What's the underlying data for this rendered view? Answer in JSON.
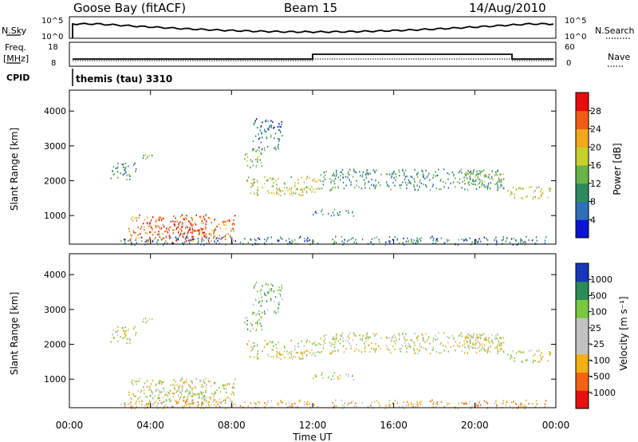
{
  "header": {
    "station": "Goose Bay (fitACF)",
    "beam": "Beam 15",
    "date": "14/Aug/2010"
  },
  "nsky_panel": {
    "left_label": "N.Sky",
    "right_label": "N.Search",
    "ticks_left": [
      "10^5",
      "10^0"
    ],
    "ticks_right": [
      "10^5",
      "10^0"
    ]
  },
  "freq_panel": {
    "left_label": "Freq.",
    "left_unit": "[MHz]",
    "right_label": "Nave",
    "ticks_left": [
      "18",
      "8"
    ],
    "ticks_right": [
      "60",
      "0"
    ]
  },
  "cpid": {
    "label": "CPID",
    "value": "themis (tau) 3310"
  },
  "x_axis": {
    "label": "Time UT",
    "ticks": [
      "00:00",
      "04:00",
      "08:00",
      "12:00",
      "16:00",
      "20:00",
      "00:00"
    ]
  },
  "colors": {
    "power_scale": [
      "#0a14d2",
      "#2e6fb7",
      "#2d8a5e",
      "#6ab24a",
      "#c9cf2c",
      "#f2a81c",
      "#f25c12",
      "#e80c0c"
    ],
    "velocity_scale": [
      "#e81010",
      "#f26414",
      "#f2b014",
      "#c2c2c2",
      "#c2c2c2",
      "#78c840",
      "#2c8c58",
      "#1836b8"
    ]
  },
  "chart_data": {
    "type": "heatmap",
    "x_unit": "hours UT",
    "y_unit": "km",
    "xlim": [
      0,
      24
    ],
    "ylim": [
      180,
      4600
    ],
    "power_panel": {
      "ylabel": "Slant Range [km]",
      "yticks": [
        1000,
        2000,
        3000,
        4000
      ],
      "colorbar_label": "Power [dB]",
      "colorbar_ticks": [
        "28",
        "24",
        "20",
        "16",
        "12",
        "8",
        "4"
      ]
    },
    "velocity_panel": {
      "ylabel": "Slant Range [km]",
      "yticks": [
        1000,
        2000,
        3000,
        4000
      ],
      "colorbar_label": "Velocity [m s⁻¹]",
      "colorbar_ticks": [
        "1000",
        "500",
        "100",
        "25",
        "-25",
        "-100",
        "-500",
        "-1000"
      ]
    },
    "scatter_regions": [
      {
        "t0": 2.9,
        "t1": 8.2,
        "r0": 280,
        "r1": 1050,
        "power": 25,
        "vel": 0
      },
      {
        "t0": 4.5,
        "t1": 6.8,
        "r0": 380,
        "r1": 880,
        "power": 30,
        "vel": 0
      },
      {
        "t0": 8.6,
        "t1": 12.3,
        "r0": 1600,
        "r1": 2150,
        "power": 18,
        "vel": 0
      },
      {
        "t0": 8.6,
        "t1": 9.5,
        "r0": 2400,
        "r1": 2900,
        "power": 15,
        "vel": 50
      },
      {
        "t0": 2.0,
        "t1": 3.3,
        "r0": 2050,
        "r1": 2550,
        "power": 10,
        "vel": 0
      },
      {
        "t0": 3.6,
        "t1": 4.1,
        "r0": 2550,
        "r1": 2800,
        "power": 12,
        "vel": 0
      },
      {
        "t0": 12.3,
        "t1": 21.5,
        "r0": 1750,
        "r1": 2350,
        "power": 10,
        "vel": 0
      },
      {
        "t0": 19.5,
        "t1": 21.5,
        "r0": 1850,
        "r1": 2250,
        "power": 16,
        "vel": 0
      },
      {
        "t0": 21.6,
        "t1": 23.8,
        "r0": 1500,
        "r1": 1850,
        "power": 18,
        "vel": 0
      },
      {
        "t0": 12.0,
        "t1": 14.0,
        "r0": 1000,
        "r1": 1200,
        "power": 10,
        "vel": 0
      },
      {
        "t0": 2.5,
        "t1": 23.5,
        "r0": 180,
        "r1": 420,
        "power": 8,
        "vel": -60
      },
      {
        "t0": 9.0,
        "t1": 10.5,
        "r0": 2900,
        "r1": 3800,
        "power": 8,
        "vel": 50
      }
    ]
  }
}
